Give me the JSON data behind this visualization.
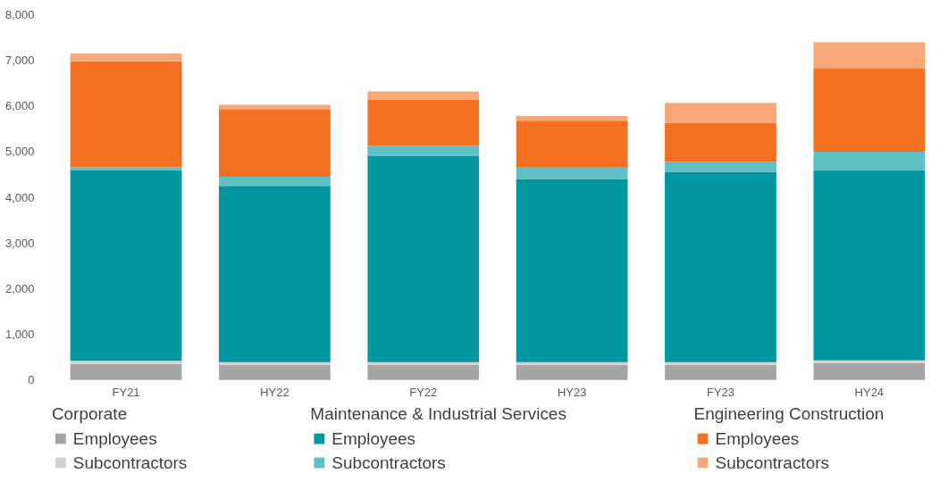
{
  "chart_data": {
    "type": "bar",
    "stacked": true,
    "categories": [
      "FY21",
      "HY22",
      "FY22",
      "HY23",
      "FY23",
      "HY24"
    ],
    "series": [
      {
        "name": "Employees",
        "color": "#a5a5a5",
        "values": [
          350,
          330,
          330,
          330,
          330,
          370
        ]
      },
      {
        "name": "Subcontractors",
        "color": "#d2d2d2",
        "values": [
          70,
          60,
          60,
          60,
          60,
          60
        ]
      },
      {
        "name": "Employees",
        "color": "#0097a0",
        "values": [
          4180,
          3860,
          4510,
          4010,
          4160,
          4170
        ]
      },
      {
        "name": "Subcontractors",
        "color": "#5fc0c5",
        "values": [
          60,
          200,
          230,
          250,
          230,
          400
        ]
      },
      {
        "name": "Employees",
        "color": "#f37021",
        "values": [
          2320,
          1480,
          1000,
          1030,
          850,
          1830
        ]
      },
      {
        "name": "Subcontractors",
        "color": "#f8a878",
        "values": [
          170,
          100,
          190,
          100,
          440,
          570
        ]
      }
    ],
    "annotations": [
      "Corporate",
      "Maintenance & Industrial Services",
      "Engineering Construction"
    ],
    "ylim": [
      0,
      8000
    ],
    "yticks": [
      0,
      {
        "value": 1000,
        "label": "1,000"
      },
      {
        "value": 2000,
        "label": "2,000"
      },
      {
        "value": 3000,
        "label": "3,000"
      },
      {
        "value": 4000,
        "label": "4,000"
      },
      {
        "value": 5000,
        "label": "5,000"
      },
      {
        "value": 6000,
        "label": "6,000"
      },
      {
        "value": 7000,
        "label": "7,000"
      },
      {
        "value": 8000,
        "label": "8,000"
      }
    ],
    "grid": false,
    "legend": "bottom"
  }
}
